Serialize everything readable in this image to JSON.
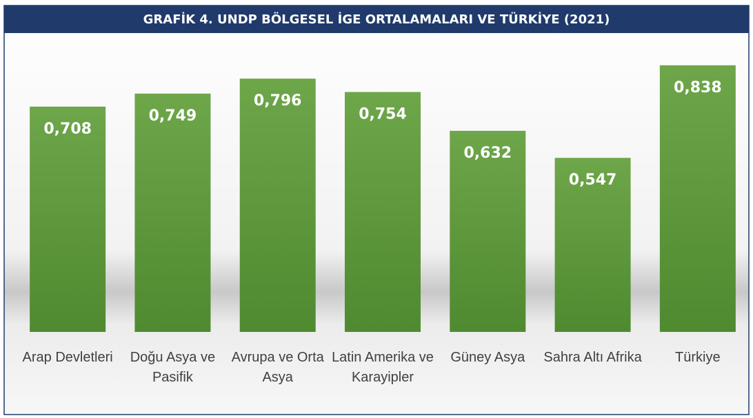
{
  "chart_data": {
    "type": "bar",
    "title": "GRAFİK 4. UNDP BÖLGESEL İGE ORTALAMALARI VE TÜRKİYE (2021)",
    "categories": [
      "Arap Devletleri",
      "Doğu Asya ve Pasifik",
      "Avrupa ve Orta Asya",
      "Latin Amerika ve Karayipler",
      "Güney Asya",
      "Sahra Altı Afrika",
      "Türkiye"
    ],
    "values": [
      0.708,
      0.749,
      0.796,
      0.754,
      0.632,
      0.547,
      0.838
    ],
    "value_labels": [
      "0,708",
      "0,749",
      "0,796",
      "0,754",
      "0,632",
      "0,547",
      "0,838"
    ],
    "color": "#5f9a3f",
    "ylim": [
      0,
      0.87
    ]
  }
}
